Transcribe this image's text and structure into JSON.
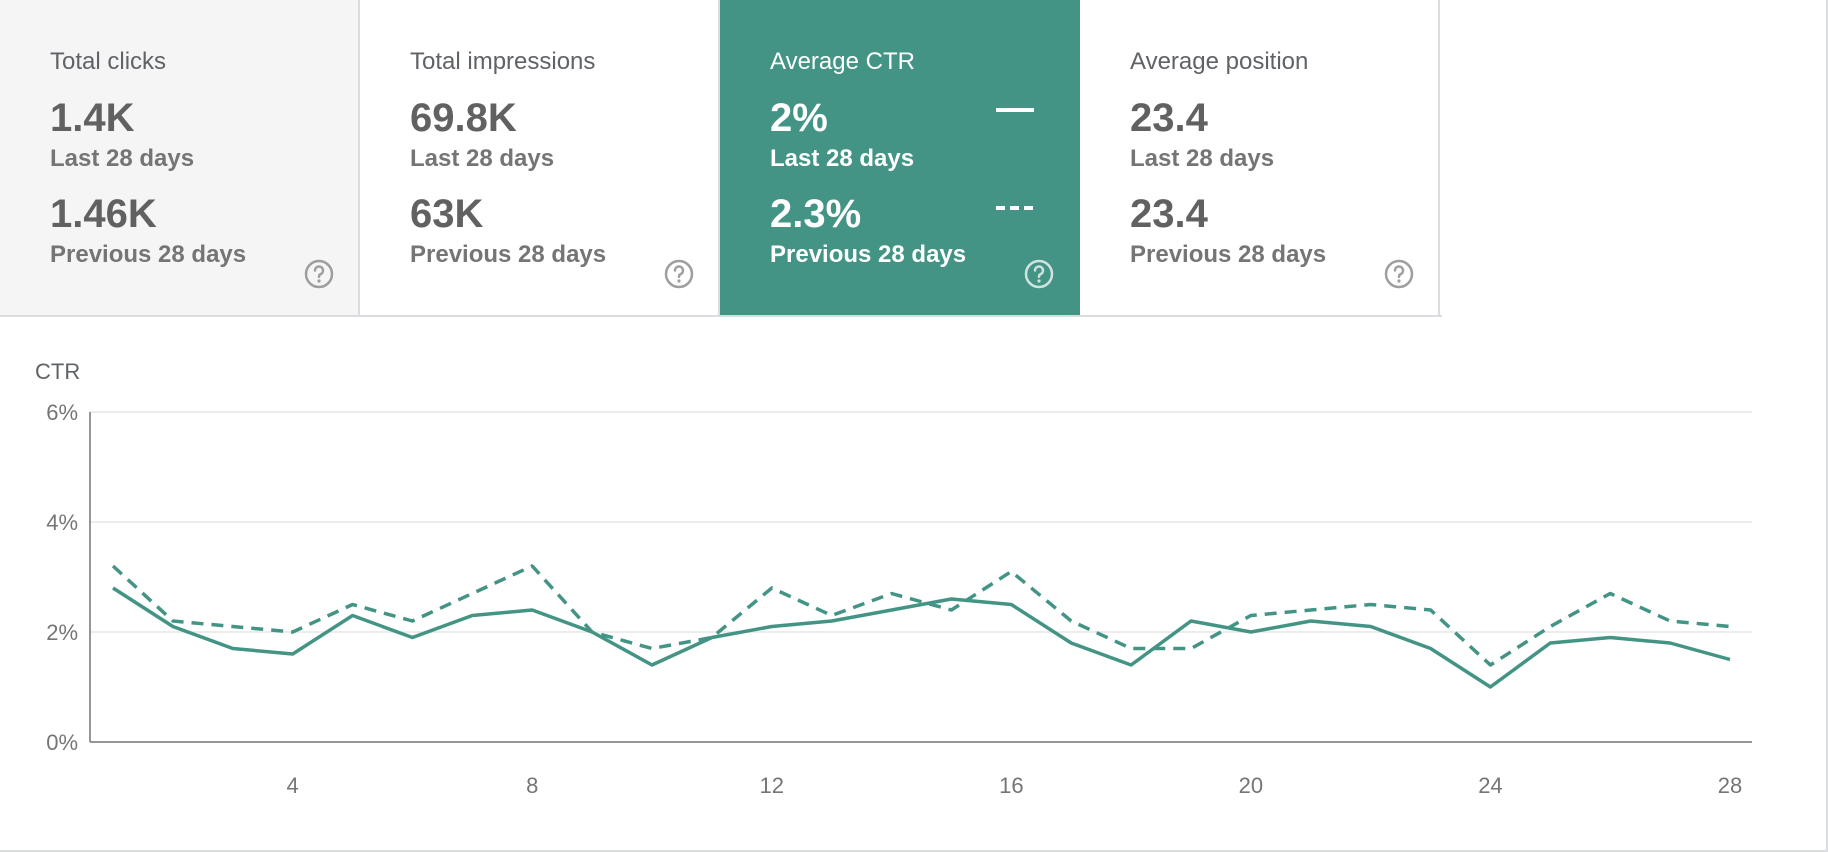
{
  "cards": [
    {
      "title": "Total clicks",
      "current_value": "1.4K",
      "current_period": "Last 28 days",
      "previous_value": "1.46K",
      "previous_period": "Previous 28 days",
      "help_icon": "help-circle-icon"
    },
    {
      "title": "Total impressions",
      "current_value": "69.8K",
      "current_period": "Last 28 days",
      "previous_value": "63K",
      "previous_period": "Previous 28 days",
      "help_icon": "help-circle-icon"
    },
    {
      "title": "Average CTR",
      "current_value": "2%",
      "current_period": "Last 28 days",
      "previous_value": "2.3%",
      "previous_period": "Previous 28 days",
      "help_icon": "help-circle-icon",
      "selected": true
    },
    {
      "title": "Average position",
      "current_value": "23.4",
      "current_period": "Last 28 days",
      "previous_value": "23.4",
      "previous_period": "Previous 28 days",
      "help_icon": "help-circle-icon"
    }
  ],
  "colors": {
    "accent": "#439485",
    "selected_card_bg": "#439485",
    "first_card_bg": "#f5f5f5",
    "line": "#439485",
    "grid": "#e6e6e6",
    "axis": "#757575"
  },
  "chart_data": {
    "type": "line",
    "title": "",
    "ylabel": "CTR",
    "xlabel": "",
    "x": [
      1,
      2,
      3,
      4,
      5,
      6,
      7,
      8,
      9,
      10,
      11,
      12,
      13,
      14,
      15,
      16,
      17,
      18,
      19,
      20,
      21,
      22,
      23,
      24,
      25,
      26,
      27,
      28
    ],
    "x_ticks": [
      "4",
      "8",
      "12",
      "16",
      "20",
      "24",
      "28"
    ],
    "x_tick_values": [
      4,
      8,
      12,
      16,
      20,
      24,
      28
    ],
    "y_ticks": [
      "0%",
      "2%",
      "4%",
      "6%"
    ],
    "y_tick_values": [
      0,
      2,
      4,
      6
    ],
    "ylim": [
      0,
      6
    ],
    "grid": true,
    "series": [
      {
        "style": "solid",
        "values": [
          2.8,
          2.1,
          1.7,
          1.6,
          2.3,
          1.9,
          2.3,
          2.4,
          2.0,
          1.4,
          1.9,
          2.1,
          2.2,
          2.4,
          2.6,
          2.5,
          1.8,
          1.4,
          2.2,
          2.0,
          2.2,
          2.1,
          1.7,
          1.0,
          1.8,
          1.9,
          1.8,
          1.5
        ]
      },
      {
        "style": "dashed",
        "values": [
          3.2,
          2.2,
          2.1,
          2.0,
          2.5,
          2.2,
          2.7,
          3.2,
          2.0,
          1.7,
          1.9,
          2.8,
          2.3,
          2.7,
          2.4,
          3.1,
          2.2,
          1.7,
          1.7,
          2.3,
          2.4,
          2.5,
          2.4,
          1.4,
          2.1,
          2.7,
          2.2,
          2.1
        ]
      }
    ]
  }
}
